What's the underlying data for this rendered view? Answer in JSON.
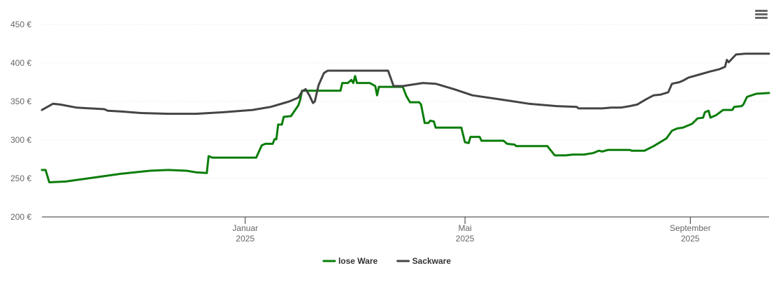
{
  "colors": {
    "grid": "#e6e6e6",
    "axis": "#333333"
  },
  "icons": {
    "menu": "hamburger-menu-icon"
  },
  "chart_data": {
    "type": "line",
    "title": "",
    "xlabel": "",
    "ylabel": "",
    "ylim": [
      200,
      450
    ],
    "yticks": [
      {
        "value": 200,
        "label": "200 €"
      },
      {
        "value": 250,
        "label": "250 €"
      },
      {
        "value": 300,
        "label": "300 €"
      },
      {
        "value": 350,
        "label": "350 €"
      },
      {
        "value": 400,
        "label": "400 €"
      },
      {
        "value": 450,
        "label": "450 €"
      }
    ],
    "xlim": [
      "2024-09-12",
      "2025-10-14"
    ],
    "xticks": [
      {
        "date": "2025-01-01",
        "month": "Januar",
        "year": "2025"
      },
      {
        "date": "2025-05-01",
        "month": "Mai",
        "year": "2025"
      },
      {
        "date": "2025-09-01",
        "month": "September",
        "year": "2025"
      }
    ],
    "grid": true,
    "legend_position": "bottom-center",
    "series": [
      {
        "name": "lose Ware",
        "color": "#0a7d0a",
        "points": [
          [
            "2024-09-12",
            261
          ],
          [
            "2024-09-14",
            261
          ],
          [
            "2024-09-16",
            245
          ],
          [
            "2024-09-25",
            246
          ],
          [
            "2024-10-10",
            251
          ],
          [
            "2024-10-25",
            256
          ],
          [
            "2024-11-10",
            260
          ],
          [
            "2024-11-20",
            261
          ],
          [
            "2024-11-30",
            260
          ],
          [
            "2024-12-05",
            258
          ],
          [
            "2024-12-11",
            257
          ],
          [
            "2024-12-12",
            279
          ],
          [
            "2024-12-14",
            277
          ],
          [
            "2025-01-07",
            277
          ],
          [
            "2025-01-10",
            293
          ],
          [
            "2025-01-12",
            295
          ],
          [
            "2025-01-16",
            295
          ],
          [
            "2025-01-17",
            301
          ],
          [
            "2025-01-18",
            301
          ],
          [
            "2025-01-19",
            320
          ],
          [
            "2025-01-21",
            320
          ],
          [
            "2025-01-22",
            330
          ],
          [
            "2025-01-26",
            331
          ],
          [
            "2025-01-30",
            345
          ],
          [
            "2025-01-31",
            352
          ],
          [
            "2025-02-01",
            364
          ],
          [
            "2025-02-22",
            364
          ],
          [
            "2025-02-23",
            374
          ],
          [
            "2025-02-26",
            374
          ],
          [
            "2025-02-28",
            378
          ],
          [
            "2025-03-01",
            374
          ],
          [
            "2025-03-02",
            383
          ],
          [
            "2025-03-03",
            374
          ],
          [
            "2025-03-10",
            374
          ],
          [
            "2025-03-13",
            370
          ],
          [
            "2025-03-14",
            358
          ],
          [
            "2025-03-15",
            369
          ],
          [
            "2025-03-28",
            369
          ],
          [
            "2025-03-30",
            357
          ],
          [
            "2025-04-01",
            349
          ],
          [
            "2025-04-06",
            349
          ],
          [
            "2025-04-07",
            346
          ],
          [
            "2025-04-09",
            322
          ],
          [
            "2025-04-11",
            322
          ],
          [
            "2025-04-12",
            325
          ],
          [
            "2025-04-14",
            324
          ],
          [
            "2025-04-15",
            316
          ],
          [
            "2025-04-29",
            316
          ],
          [
            "2025-05-01",
            297
          ],
          [
            "2025-05-03",
            296
          ],
          [
            "2025-05-04",
            304
          ],
          [
            "2025-05-09",
            304
          ],
          [
            "2025-05-10",
            299
          ],
          [
            "2025-05-22",
            299
          ],
          [
            "2025-05-24",
            295
          ],
          [
            "2025-05-28",
            294
          ],
          [
            "2025-05-29",
            292
          ],
          [
            "2025-06-15",
            292
          ],
          [
            "2025-06-19",
            280
          ],
          [
            "2025-06-25",
            280
          ],
          [
            "2025-06-29",
            281
          ],
          [
            "2025-07-05",
            281
          ],
          [
            "2025-07-10",
            283
          ],
          [
            "2025-07-13",
            286
          ],
          [
            "2025-07-15",
            285
          ],
          [
            "2025-07-18",
            287
          ],
          [
            "2025-07-30",
            287
          ],
          [
            "2025-07-31",
            286
          ],
          [
            "2025-08-07",
            286
          ],
          [
            "2025-08-12",
            292
          ],
          [
            "2025-08-19",
            302
          ],
          [
            "2025-08-22",
            312
          ],
          [
            "2025-08-25",
            315
          ],
          [
            "2025-08-28",
            316
          ],
          [
            "2025-09-02",
            321
          ],
          [
            "2025-09-05",
            328
          ],
          [
            "2025-09-08",
            329
          ],
          [
            "2025-09-09",
            336
          ],
          [
            "2025-09-11",
            338
          ],
          [
            "2025-09-12",
            329
          ],
          [
            "2025-09-15",
            332
          ],
          [
            "2025-09-19",
            339
          ],
          [
            "2025-09-24",
            339
          ],
          [
            "2025-09-25",
            343
          ],
          [
            "2025-09-29",
            344
          ],
          [
            "2025-09-30",
            346
          ],
          [
            "2025-10-02",
            356
          ],
          [
            "2025-10-07",
            360
          ],
          [
            "2025-10-14",
            361
          ]
        ]
      },
      {
        "name": "Sackware",
        "color": "#444444",
        "points": [
          [
            "2024-09-12",
            339
          ],
          [
            "2024-09-18",
            347
          ],
          [
            "2024-09-22",
            346
          ],
          [
            "2024-10-01",
            342
          ],
          [
            "2024-10-16",
            340
          ],
          [
            "2024-10-18",
            338
          ],
          [
            "2024-10-25",
            337
          ],
          [
            "2024-11-05",
            335
          ],
          [
            "2024-11-20",
            334
          ],
          [
            "2024-12-05",
            334
          ],
          [
            "2024-12-20",
            336
          ],
          [
            "2025-01-05",
            339
          ],
          [
            "2025-01-15",
            343
          ],
          [
            "2025-01-25",
            350
          ],
          [
            "2025-01-30",
            355
          ],
          [
            "2025-02-01",
            363
          ],
          [
            "2025-02-03",
            366
          ],
          [
            "2025-02-05",
            358
          ],
          [
            "2025-02-07",
            348
          ],
          [
            "2025-02-08",
            350
          ],
          [
            "2025-02-10",
            371
          ],
          [
            "2025-02-13",
            387
          ],
          [
            "2025-02-15",
            390
          ],
          [
            "2025-03-20",
            390
          ],
          [
            "2025-03-23",
            370
          ],
          [
            "2025-03-28",
            370
          ],
          [
            "2025-04-08",
            374
          ],
          [
            "2025-04-15",
            373
          ],
          [
            "2025-04-25",
            366
          ],
          [
            "2025-05-05",
            358
          ],
          [
            "2025-05-25",
            351
          ],
          [
            "2025-06-05",
            347
          ],
          [
            "2025-06-20",
            344
          ],
          [
            "2025-07-01",
            343
          ],
          [
            "2025-07-02",
            341
          ],
          [
            "2025-07-15",
            341
          ],
          [
            "2025-07-20",
            342
          ],
          [
            "2025-07-25",
            342
          ],
          [
            "2025-07-30",
            344
          ],
          [
            "2025-08-03",
            346
          ],
          [
            "2025-08-08",
            353
          ],
          [
            "2025-08-12",
            358
          ],
          [
            "2025-08-16",
            359
          ],
          [
            "2025-08-20",
            362
          ],
          [
            "2025-08-22",
            373
          ],
          [
            "2025-08-26",
            375
          ],
          [
            "2025-08-28",
            377
          ],
          [
            "2025-08-31",
            381
          ],
          [
            "2025-09-06",
            385
          ],
          [
            "2025-09-12",
            389
          ],
          [
            "2025-09-17",
            392
          ],
          [
            "2025-09-20",
            395
          ],
          [
            "2025-09-21",
            404
          ],
          [
            "2025-09-22",
            401
          ],
          [
            "2025-09-26",
            411
          ],
          [
            "2025-10-01",
            412
          ],
          [
            "2025-10-14",
            412
          ]
        ]
      }
    ]
  }
}
